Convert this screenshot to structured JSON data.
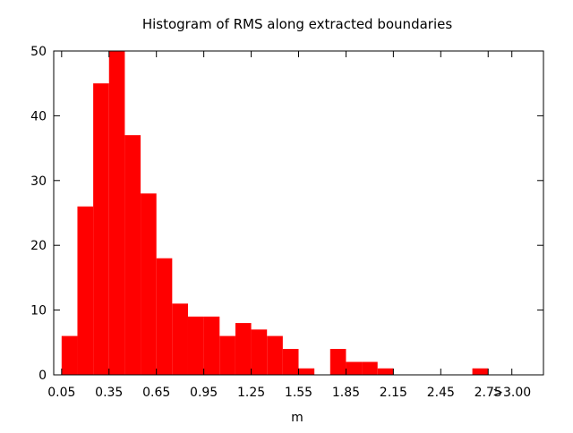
{
  "chart_data": {
    "type": "bar",
    "title": "Histogram of RMS along extracted boundaries",
    "xlabel": "m",
    "ylabel": "",
    "ylim": [
      0,
      50
    ],
    "yticks": [
      "0",
      "10",
      "20",
      "30",
      "40",
      "50"
    ],
    "xticks": [
      "0.05",
      "0.35",
      "0.65",
      "0.95",
      "1.25",
      "1.55",
      "1.85",
      "2.15",
      "2.45",
      "2.75",
      ">3.00"
    ],
    "bin_width": 0.1,
    "grid": false,
    "legend": false,
    "bar_color": "#ff0000",
    "categories": [
      "0.1",
      "0.2",
      "0.3",
      "0.4",
      "0.5",
      "0.6",
      "0.7",
      "0.8",
      "0.9",
      "1.0",
      "1.1",
      "1.2",
      "1.3",
      "1.4",
      "1.5",
      "1.6",
      "1.7",
      "1.8",
      "1.9",
      "2.0",
      "2.1",
      "2.2",
      "2.3",
      "2.4",
      "2.5",
      "2.6",
      "2.7",
      "2.8",
      "2.9"
    ],
    "values": [
      6,
      26,
      45,
      50,
      37,
      28,
      18,
      11,
      9,
      9,
      6,
      8,
      7,
      6,
      4,
      1,
      0,
      4,
      2,
      2,
      1,
      0,
      0,
      0,
      0,
      0,
      1,
      0,
      0
    ]
  }
}
